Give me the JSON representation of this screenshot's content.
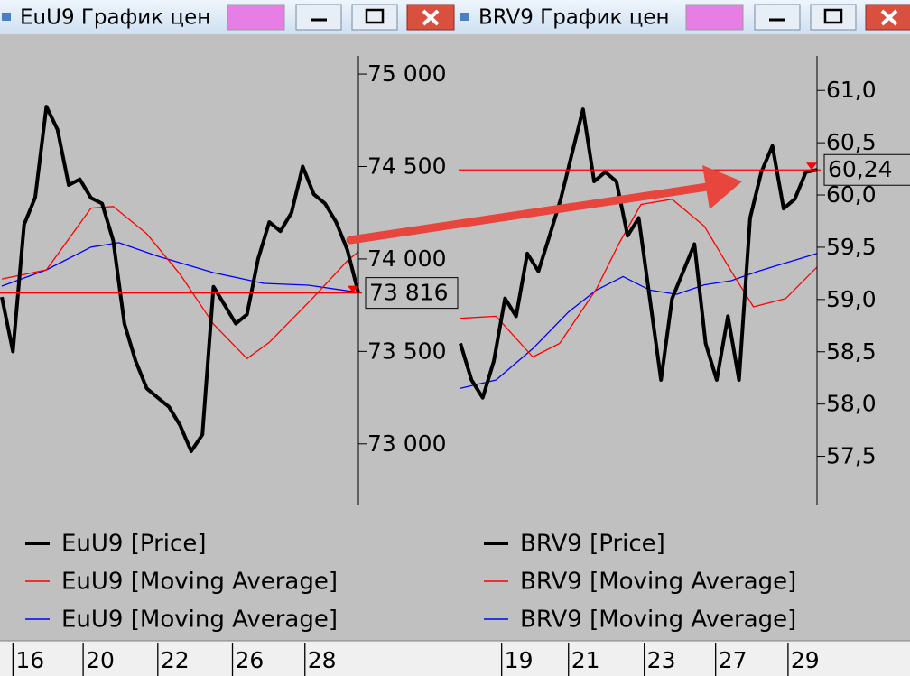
{
  "chart_data": [
    {
      "type": "line",
      "title": "EuU9 График цен",
      "xlim": [
        0,
        32
      ],
      "xticks": [
        {
          "value": 1.0,
          "label": "16"
        },
        {
          "value": 7.3,
          "label": "20"
        },
        {
          "value": 14.0,
          "label": "22"
        },
        {
          "value": 20.7,
          "label": "26"
        },
        {
          "value": 27.2,
          "label": "28"
        }
      ],
      "ylim": [
        72667,
        75098
      ],
      "yticks": [
        {
          "value": 73000,
          "label": "73 000"
        },
        {
          "value": 73500,
          "label": "73 500"
        },
        {
          "value": 74000,
          "label": "74 000"
        },
        {
          "value": 74500,
          "label": "74 500"
        },
        {
          "value": 75000,
          "label": "75 000"
        }
      ],
      "last_value": {
        "value": 73816,
        "label": "73 816"
      },
      "series": [
        {
          "name": "EuU9 [Price]",
          "color": "#000000",
          "x": [
            0,
            1,
            2,
            3,
            4,
            5,
            6,
            7,
            8,
            9,
            10,
            11,
            12,
            13,
            14,
            15,
            16,
            17,
            18,
            19,
            20,
            21,
            22,
            23,
            24,
            25,
            26,
            27,
            28,
            29,
            30,
            31,
            32
          ],
          "values": [
            73794,
            73500,
            74186,
            74333,
            74824,
            74700,
            74400,
            74431,
            74330,
            74300,
            74100,
            73650,
            73450,
            73300,
            73250,
            73200,
            73100,
            72960,
            73050,
            73850,
            73750,
            73650,
            73700,
            74000,
            74200,
            74150,
            74250,
            74500,
            74350,
            74300,
            74200,
            74050,
            73816
          ]
        },
        {
          "name": "EuU9 [Moving Average]",
          "color": "#ff0000",
          "x": [
            0,
            4,
            8,
            10,
            13,
            16,
            19,
            22,
            24,
            28,
            31,
            32
          ],
          "values": [
            73892,
            73941,
            74275,
            74284,
            74137,
            73917,
            73647,
            73461,
            73549,
            73794,
            73990,
            74039
          ]
        },
        {
          "name": "EuU9 [Moving Average]",
          "color": "#0000ff",
          "x": [
            0,
            4,
            8,
            10.5,
            14,
            19,
            23.5,
            27.5,
            32
          ],
          "values": [
            73853,
            73941,
            74064,
            74088,
            74015,
            73926,
            73868,
            73858,
            73819
          ]
        }
      ]
    },
    {
      "type": "line",
      "title": "BRV9 График цен",
      "xlim": [
        0,
        32
      ],
      "xticks": [
        {
          "value": 3.7,
          "label": "19"
        },
        {
          "value": 9.7,
          "label": "21"
        },
        {
          "value": 16.5,
          "label": "23"
        },
        {
          "value": 22.9,
          "label": "27"
        },
        {
          "value": 29.4,
          "label": "29"
        }
      ],
      "ylim": [
        57.03,
        61.33
      ],
      "yticks": [
        {
          "value": 57.5,
          "label": "57,5"
        },
        {
          "value": 58.0,
          "label": "58,0"
        },
        {
          "value": 58.5,
          "label": "58,5"
        },
        {
          "value": 59.0,
          "label": "59,0"
        },
        {
          "value": 59.5,
          "label": "59,5"
        },
        {
          "value": 60.0,
          "label": "60,0"
        },
        {
          "value": 60.5,
          "label": "60,5"
        },
        {
          "value": 61.0,
          "label": "61,0"
        }
      ],
      "last_value": {
        "value": 60.24,
        "label": "60,24"
      },
      "series": [
        {
          "name": "BRV9 [Price]",
          "color": "#000000",
          "x": [
            0,
            1,
            2,
            3,
            4,
            5,
            6,
            7,
            8,
            9,
            10,
            11,
            12,
            13,
            14,
            15,
            16,
            17,
            18,
            19,
            20,
            21,
            22,
            23,
            24,
            25,
            26,
            27,
            28,
            29,
            30,
            31,
            32
          ],
          "values": [
            58.58,
            58.23,
            58.06,
            58.41,
            59.01,
            58.84,
            59.44,
            59.27,
            59.61,
            59.96,
            60.39,
            60.82,
            60.13,
            60.22,
            60.13,
            59.61,
            59.78,
            59.01,
            58.23,
            59.01,
            59.27,
            59.53,
            58.58,
            58.23,
            58.84,
            58.23,
            59.78,
            60.22,
            60.47,
            59.87,
            59.96,
            60.22,
            60.24
          ]
        },
        {
          "name": "BRV9 [Moving Average]",
          "color": "#ff0000",
          "x": [
            0,
            3.2,
            6.5,
            8.9,
            12.2,
            14.2,
            16.2,
            19,
            21.9,
            24.3,
            26.3,
            29.2,
            32
          ],
          "values": [
            58.82,
            58.84,
            58.45,
            58.58,
            59.1,
            59.53,
            59.91,
            59.96,
            59.7,
            59.27,
            58.93,
            59.01,
            59.31
          ]
        },
        {
          "name": "BRV9 [Moving Average]",
          "color": "#0000ff",
          "x": [
            0,
            3.2,
            6.5,
            9.7,
            12.2,
            14.6,
            17,
            19.4,
            21.9,
            24.3,
            26.7,
            29.2,
            32
          ],
          "values": [
            58.15,
            58.23,
            58.53,
            58.88,
            59.09,
            59.22,
            59.09,
            59.05,
            59.14,
            59.18,
            59.27,
            59.35,
            59.44
          ]
        }
      ]
    }
  ]
}
